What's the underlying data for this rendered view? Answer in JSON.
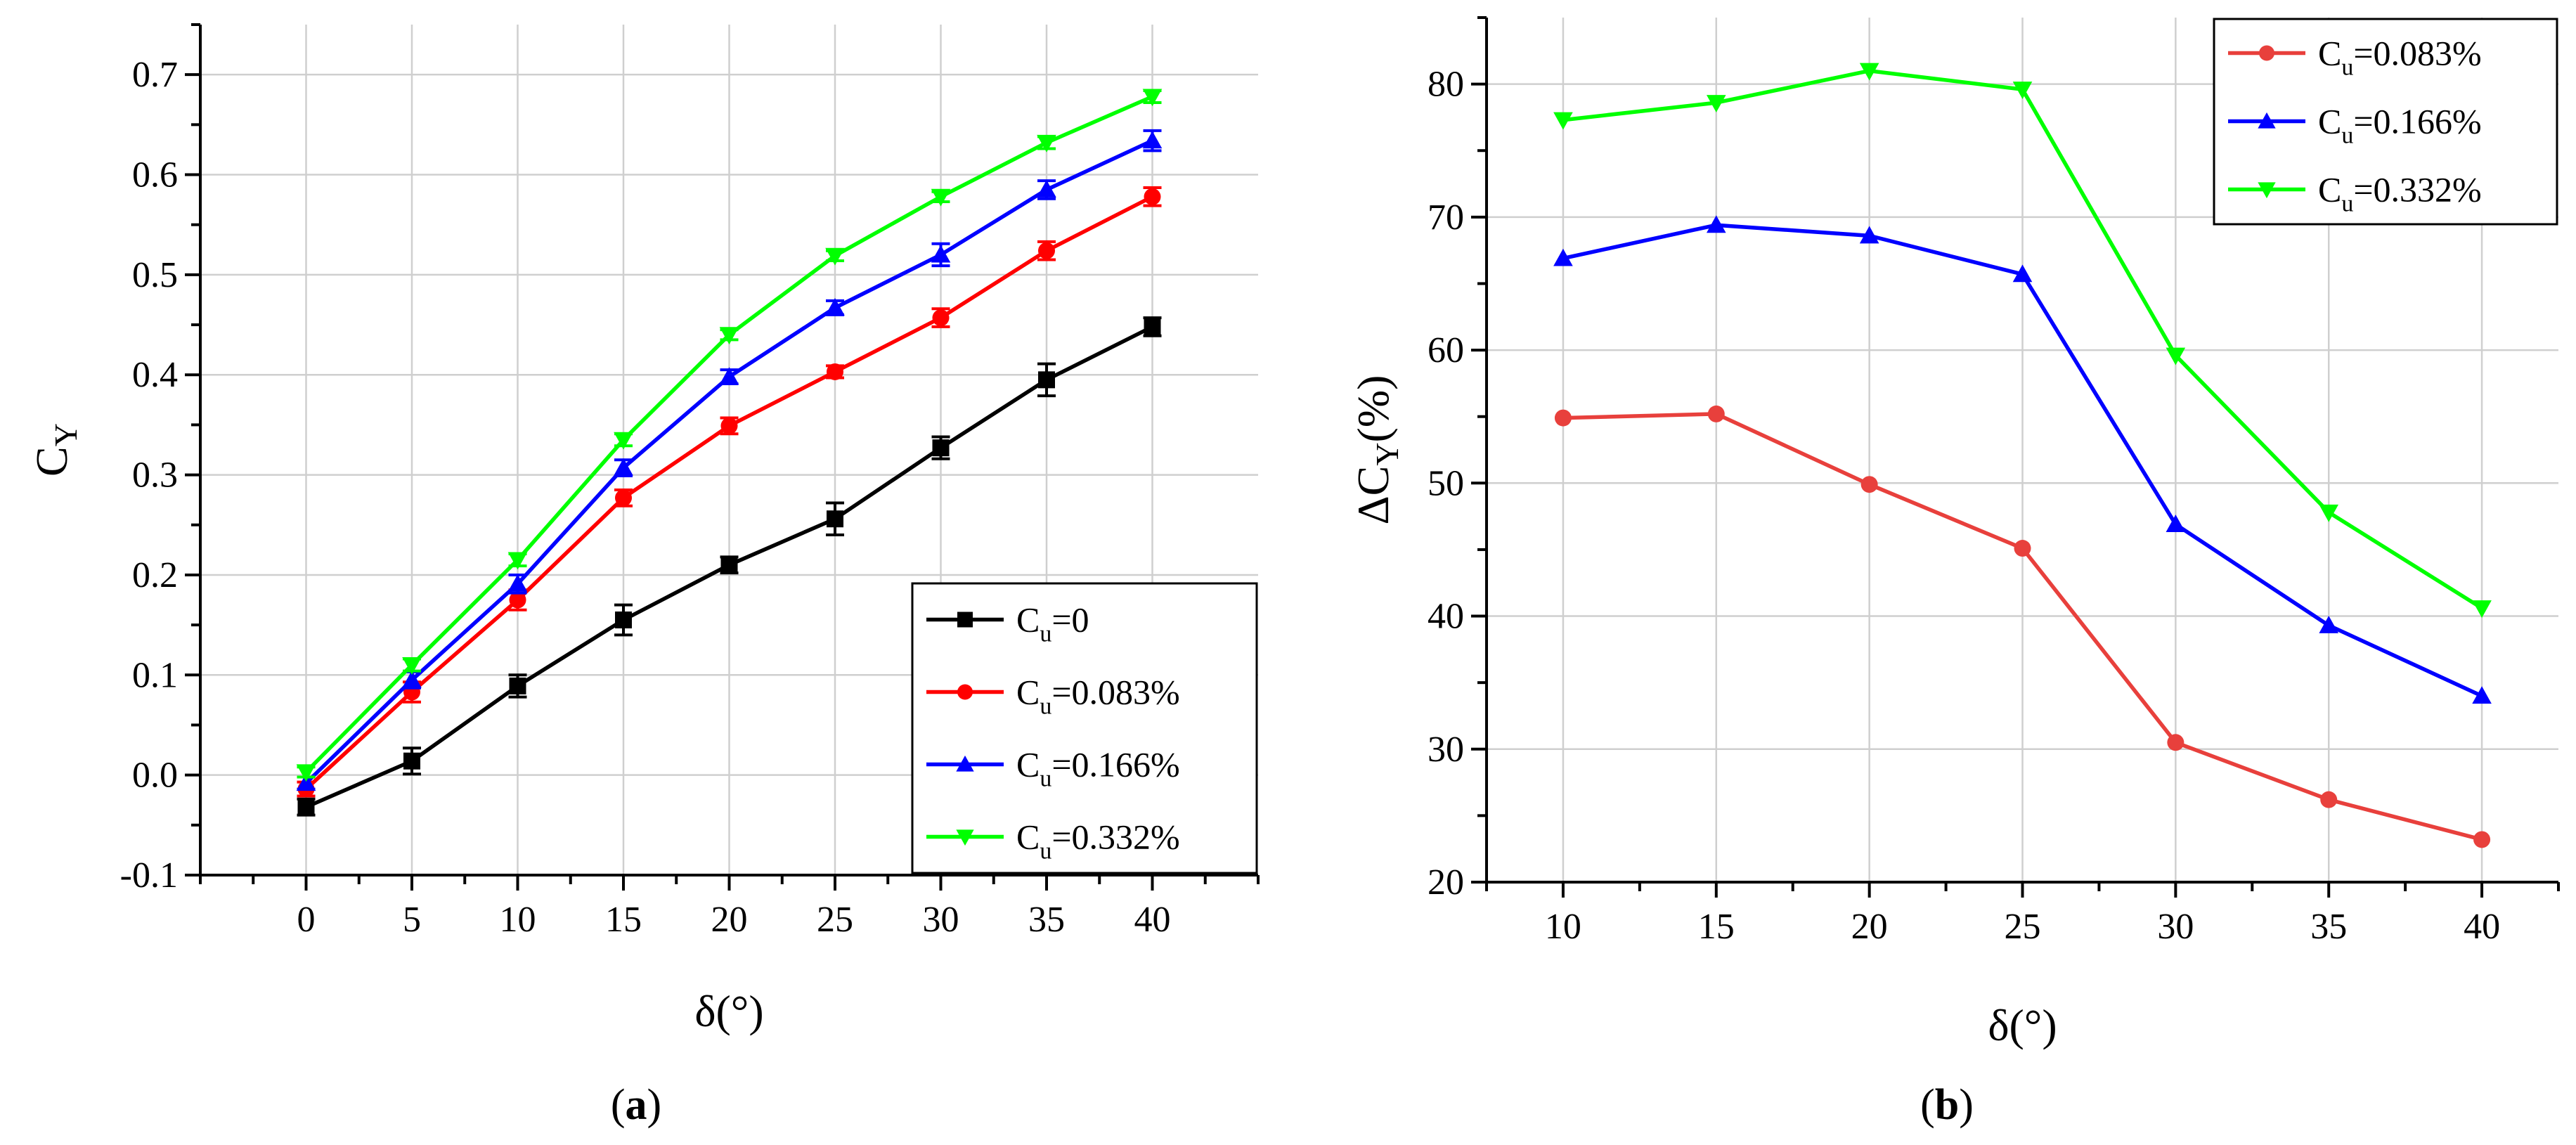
{
  "chart_data": [
    {
      "type": "line",
      "panel_label": "(a)",
      "xlabel": "δ(°)",
      "ylabel_main": "C",
      "ylabel_sub": "Y",
      "x": [
        0,
        5,
        10,
        15,
        20,
        25,
        30,
        35,
        40
      ],
      "xticks": [
        "0",
        "5",
        "10",
        "15",
        "20",
        "25",
        "30",
        "35",
        "40"
      ],
      "xlim": [
        -5,
        45
      ],
      "ylim": [
        -0.1,
        0.75
      ],
      "yticks": [
        "-0.1",
        "0.0",
        "0.1",
        "0.2",
        "0.3",
        "0.4",
        "0.5",
        "0.6",
        "0.7"
      ],
      "error_bars": true,
      "grid": true,
      "legend_position": "bottom-right",
      "series": [
        {
          "name": "0",
          "legend_main": "C",
          "legend_sub": "u",
          "legend_suffix": "=0",
          "color": "#000000",
          "marker": "square",
          "values": [
            -0.032,
            0.014,
            0.089,
            0.155,
            0.21,
            0.256,
            0.327,
            0.395,
            0.448
          ],
          "errors": [
            0.008,
            0.013,
            0.011,
            0.015,
            0.008,
            0.016,
            0.011,
            0.016,
            0.009
          ]
        },
        {
          "name": "0.083%",
          "legend_main": "C",
          "legend_sub": "u",
          "legend_suffix": "=0.083%",
          "color": "#ff0000",
          "marker": "circle",
          "values": [
            -0.014,
            0.083,
            0.175,
            0.277,
            0.349,
            0.403,
            0.457,
            0.524,
            0.578
          ],
          "errors": [
            0.007,
            0.01,
            0.01,
            0.008,
            0.008,
            0.006,
            0.009,
            0.009,
            0.009
          ]
        },
        {
          "name": "0.166%",
          "legend_main": "C",
          "legend_sub": "u",
          "legend_suffix": "=0.166%",
          "color": "#0000ff",
          "marker": "triangle-up",
          "values": [
            -0.008,
            0.095,
            0.191,
            0.307,
            0.398,
            0.467,
            0.52,
            0.585,
            0.634
          ],
          "errors": [
            0.006,
            0.008,
            0.009,
            0.008,
            0.007,
            0.007,
            0.011,
            0.009,
            0.01
          ]
        },
        {
          "name": "0.332%",
          "legend_main": "C",
          "legend_sub": "u",
          "legend_suffix": "=0.332%",
          "color": "#00ff00",
          "marker": "triangle-down",
          "values": [
            0.003,
            0.11,
            0.215,
            0.335,
            0.44,
            0.519,
            0.578,
            0.632,
            0.678
          ],
          "errors": [
            0.005,
            0.006,
            0.006,
            0.006,
            0.005,
            0.005,
            0.005,
            0.006,
            0.006
          ]
        }
      ]
    },
    {
      "type": "line",
      "panel_label": "(b)",
      "xlabel": "δ(°)",
      "ylabel_prefix": "ΔC",
      "ylabel_sub": "Y",
      "ylabel_suffix": "(%)",
      "x": [
        10,
        15,
        20,
        25,
        30,
        35,
        40
      ],
      "xticks": [
        "10",
        "15",
        "20",
        "25",
        "30",
        "35",
        "40"
      ],
      "xlim": [
        7.5,
        42.5
      ],
      "ylim": [
        20,
        85
      ],
      "yticks": [
        "20",
        "30",
        "40",
        "50",
        "60",
        "70",
        "80"
      ],
      "grid": true,
      "legend_position": "top-right",
      "series": [
        {
          "name": "0.083%",
          "legend_main": "C",
          "legend_sub": "u",
          "legend_suffix": "=0.083%",
          "color": "#e8403c",
          "marker": "circle",
          "values": [
            54.9,
            55.2,
            49.9,
            45.1,
            30.5,
            26.2,
            23.2
          ]
        },
        {
          "name": "0.166%",
          "legend_main": "C",
          "legend_sub": "u",
          "legend_suffix": "=0.166%",
          "color": "#0000ff",
          "marker": "triangle-up",
          "values": [
            66.9,
            69.4,
            68.6,
            65.7,
            46.9,
            39.3,
            34.0
          ]
        },
        {
          "name": "0.332%",
          "legend_main": "C",
          "legend_sub": "u",
          "legend_suffix": "=0.332%",
          "color": "#00ff00",
          "marker": "triangle-down",
          "values": [
            77.3,
            78.6,
            81.0,
            79.6,
            59.6,
            47.8,
            40.6
          ]
        }
      ]
    }
  ]
}
